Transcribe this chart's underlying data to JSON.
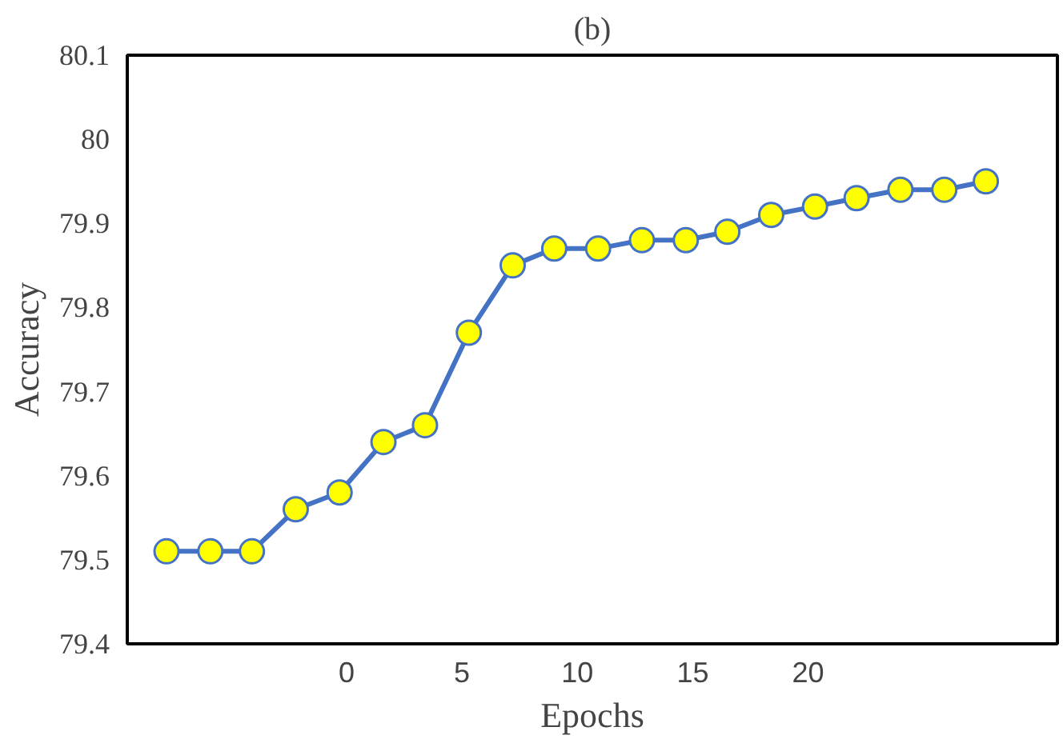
{
  "chart_data": {
    "type": "line",
    "title": "(b)",
    "xlabel": "Epochs",
    "ylabel": "Accuracy",
    "x": [
      -7.8,
      -5.9,
      -4.1,
      -2.2,
      -0.3,
      1.6,
      3.4,
      5.3,
      7.2,
      9.0,
      10.9,
      12.8,
      14.7,
      16.5,
      18.4,
      20.3,
      22.1,
      24.0,
      25.9,
      27.7
    ],
    "series": [
      {
        "color": "#4472c4",
        "values": [
          79.51,
          79.51,
          79.51,
          79.56,
          79.58,
          79.64,
          79.66,
          79.77,
          79.85,
          79.87,
          79.87,
          79.88,
          79.88,
          79.89,
          79.91,
          79.92,
          79.93,
          79.94,
          79.94,
          79.95
        ]
      }
    ],
    "xlim": [
      -9.5,
      30.8
    ],
    "xticks": [
      0,
      5,
      10,
      15,
      20
    ],
    "ylim": [
      79.4,
      80.1
    ],
    "yticks": [
      {
        "value": 79.4,
        "label": "79.4"
      },
      {
        "value": 79.5,
        "label": "79.5"
      },
      {
        "value": 79.6,
        "label": "79.6"
      },
      {
        "value": 79.7,
        "label": "79.7"
      },
      {
        "value": 79.8,
        "label": "79.8"
      },
      {
        "value": 79.9,
        "label": "79.9"
      },
      {
        "value": 80,
        "label": "80"
      },
      {
        "value": 80.1,
        "label": "80.1"
      }
    ],
    "grid": false,
    "marker": "circle",
    "line_style": "solid"
  }
}
